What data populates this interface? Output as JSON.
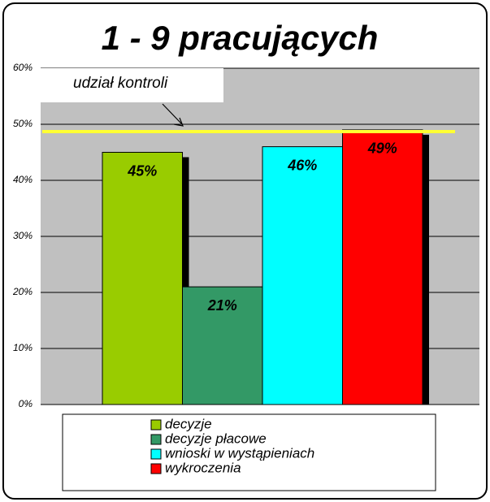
{
  "chart_data": {
    "type": "bar",
    "title": "1 - 9 pracujących",
    "categories": [
      "decyzje",
      "decyzje płacowe",
      "wnioski w wystąpieniach",
      "wykroczenia"
    ],
    "values": [
      45,
      21,
      46,
      49
    ],
    "value_labels": [
      "45%",
      "21%",
      "46%",
      "49%"
    ],
    "colors": [
      "#99cc00",
      "#339966",
      "#00ffff",
      "#ff0000"
    ],
    "ylim": [
      0,
      60
    ],
    "yticks": [
      {
        "value": 0,
        "label": "0%"
      },
      {
        "value": 10,
        "label": "10%"
      },
      {
        "value": 20,
        "label": "20%"
      },
      {
        "value": 30,
        "label": "30%"
      },
      {
        "value": 40,
        "label": "40%"
      },
      {
        "value": 50,
        "label": "50%"
      },
      {
        "value": 60,
        "label": "60%"
      }
    ],
    "grid": true,
    "annotation": {
      "text": "udział kontroli",
      "value": 48.7,
      "color": "#ffff33"
    },
    "legend": "bottom"
  }
}
